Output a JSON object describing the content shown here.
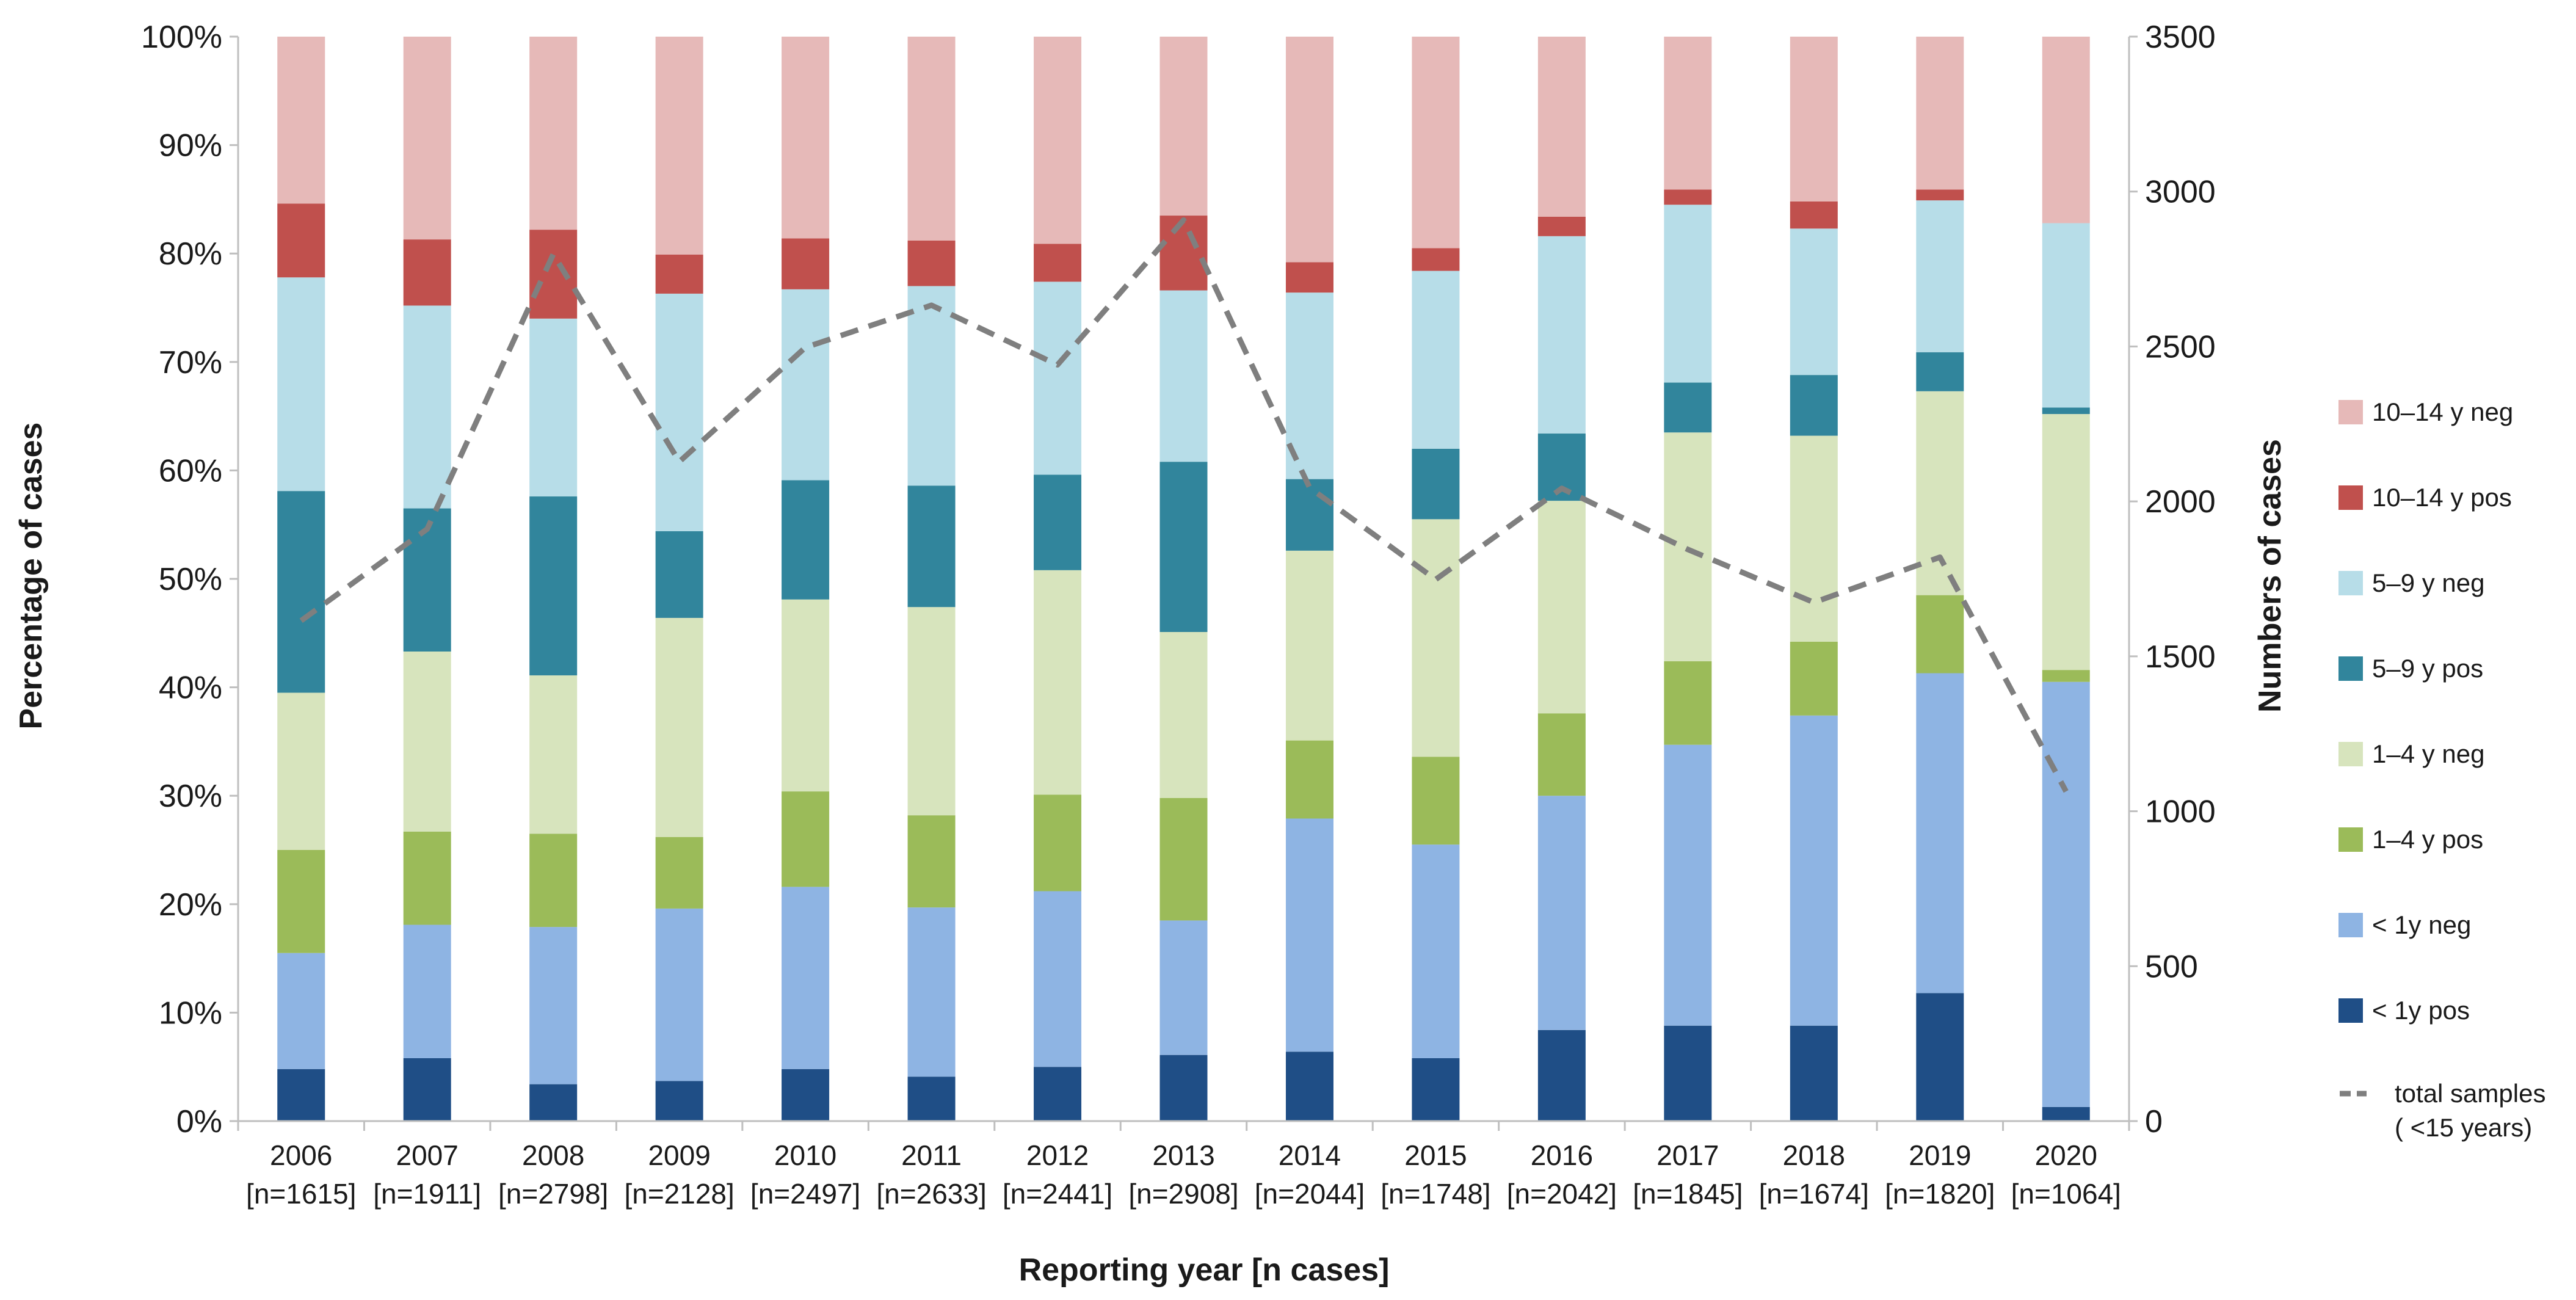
{
  "chart_data": {
    "type": "bar",
    "stacked": true,
    "xlabel": "Reporting year [n cases]",
    "ylabel": "Percentage of cases",
    "y2label": "Numbers of cases",
    "ylim": [
      0,
      100
    ],
    "y2lim": [
      0,
      3500
    ],
    "yticks": [
      "0%",
      "10%",
      "20%",
      "30%",
      "40%",
      "50%",
      "60%",
      "70%",
      "80%",
      "90%",
      "100%"
    ],
    "y2ticks": [
      "0",
      "500",
      "1000",
      "1500",
      "2000",
      "2500",
      "3000",
      "3500"
    ],
    "categories": [
      "2006",
      "2007",
      "2008",
      "2009",
      "2010",
      "2011",
      "2012",
      "2013",
      "2014",
      "2015",
      "2016",
      "2017",
      "2018",
      "2019",
      "2020"
    ],
    "category_counts": [
      "[n=1615]",
      "[n=1911]",
      "[n=2798]",
      "[n=2128]",
      "[n=2497]",
      "[n=2633]",
      "[n=2441]",
      "[n=2908]",
      "[n=2044]",
      "[n=1748]",
      "[n=2042]",
      "[n=1845]",
      "[n=1674]",
      "[n=1820]",
      "[n=1064]"
    ],
    "series": [
      {
        "name": "< 1y pos",
        "color": "#1f4e86",
        "values": [
          4.8,
          5.8,
          3.4,
          3.7,
          4.8,
          4.1,
          5.0,
          6.1,
          6.4,
          5.8,
          8.4,
          8.8,
          8.8,
          11.8,
          1.3
        ]
      },
      {
        "name": "< 1y neg",
        "color": "#8eb4e3",
        "values": [
          10.7,
          12.3,
          14.5,
          15.9,
          16.8,
          15.6,
          16.2,
          12.4,
          21.5,
          19.7,
          21.6,
          25.9,
          28.6,
          29.5,
          39.2
        ]
      },
      {
        "name": "1–4 y pos",
        "color": "#9bbb59",
        "values": [
          9.5,
          8.6,
          8.6,
          6.6,
          8.8,
          8.5,
          8.9,
          11.3,
          7.2,
          8.1,
          7.6,
          7.7,
          6.8,
          7.2,
          1.1
        ]
      },
      {
        "name": "1–4 y neg",
        "color": "#d7e4bd",
        "values": [
          14.5,
          16.6,
          14.6,
          20.2,
          17.7,
          19.2,
          20.7,
          15.3,
          17.5,
          21.9,
          19.6,
          21.1,
          19.0,
          18.8,
          23.6
        ]
      },
      {
        "name": "5–9 y pos",
        "color": "#31859c",
        "values": [
          18.6,
          13.2,
          16.5,
          8.0,
          11.0,
          11.2,
          8.8,
          15.7,
          6.6,
          6.5,
          6.2,
          4.6,
          5.6,
          3.6,
          0.6
        ]
      },
      {
        "name": "5–9 y neg",
        "color": "#b7dde8",
        "values": [
          19.7,
          18.7,
          16.4,
          21.9,
          17.6,
          18.4,
          17.8,
          15.8,
          17.2,
          16.4,
          18.2,
          16.4,
          13.5,
          14.0,
          17.0
        ]
      },
      {
        "name": "10–14 y pos",
        "color": "#c0504d",
        "values": [
          6.8,
          6.1,
          8.2,
          3.6,
          4.7,
          4.2,
          3.5,
          6.9,
          2.8,
          2.1,
          1.8,
          1.4,
          2.5,
          1.0,
          0.0
        ]
      },
      {
        "name": "10–14 y neg",
        "color": "#e6b9b8",
        "values": [
          15.4,
          18.7,
          17.8,
          20.1,
          18.6,
          18.8,
          19.1,
          16.5,
          20.8,
          19.5,
          16.6,
          14.1,
          15.2,
          14.1,
          17.2
        ]
      }
    ],
    "line_series": {
      "name": "total samples",
      "name_line2": "( <15 years)",
      "axis": "right",
      "color": "#7f7f7f",
      "values": [
        1615,
        1911,
        2798,
        2128,
        2497,
        2633,
        2441,
        2908,
        2044,
        1748,
        2042,
        1845,
        1674,
        1820,
        1064
      ]
    },
    "legend_position": "right"
  }
}
